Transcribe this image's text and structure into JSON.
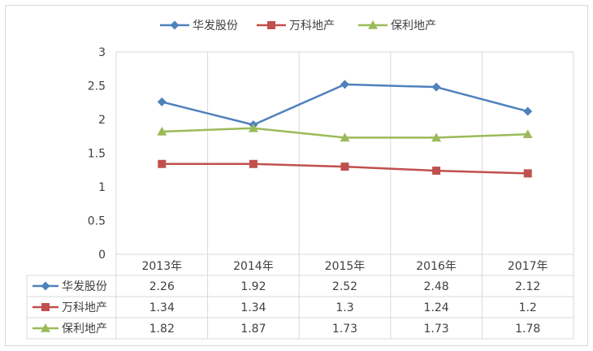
{
  "chart_data": {
    "type": "line",
    "title": "",
    "xlabel": "",
    "ylabel": "",
    "categories": [
      "2013年",
      "2014年",
      "2015年",
      "2016年",
      "2017年"
    ],
    "ylim": [
      0,
      3
    ],
    "yticks": [
      "0",
      "0.5",
      "1",
      "1.5",
      "2",
      "2.5",
      "3"
    ],
    "grid": true,
    "legend": "top",
    "data_table": true,
    "series": [
      {
        "name": "华发股份",
        "color": "#4f81bd",
        "marker": "diamond",
        "values": [
          2.26,
          1.92,
          2.52,
          2.48,
          2.12
        ],
        "labels": [
          "2.26",
          "1.92",
          "2.52",
          "2.48",
          "2.12"
        ]
      },
      {
        "name": "万科地产",
        "color": "#c0504d",
        "marker": "square",
        "values": [
          1.34,
          1.34,
          1.3,
          1.24,
          1.2
        ],
        "labels": [
          "1.34",
          "1.34",
          "1.3",
          "1.24",
          "1.2"
        ]
      },
      {
        "name": "保利地产",
        "color": "#9bbb59",
        "marker": "triangle",
        "values": [
          1.82,
          1.87,
          1.73,
          1.73,
          1.78
        ],
        "labels": [
          "1.82",
          "1.87",
          "1.73",
          "1.73",
          "1.78"
        ]
      }
    ]
  }
}
